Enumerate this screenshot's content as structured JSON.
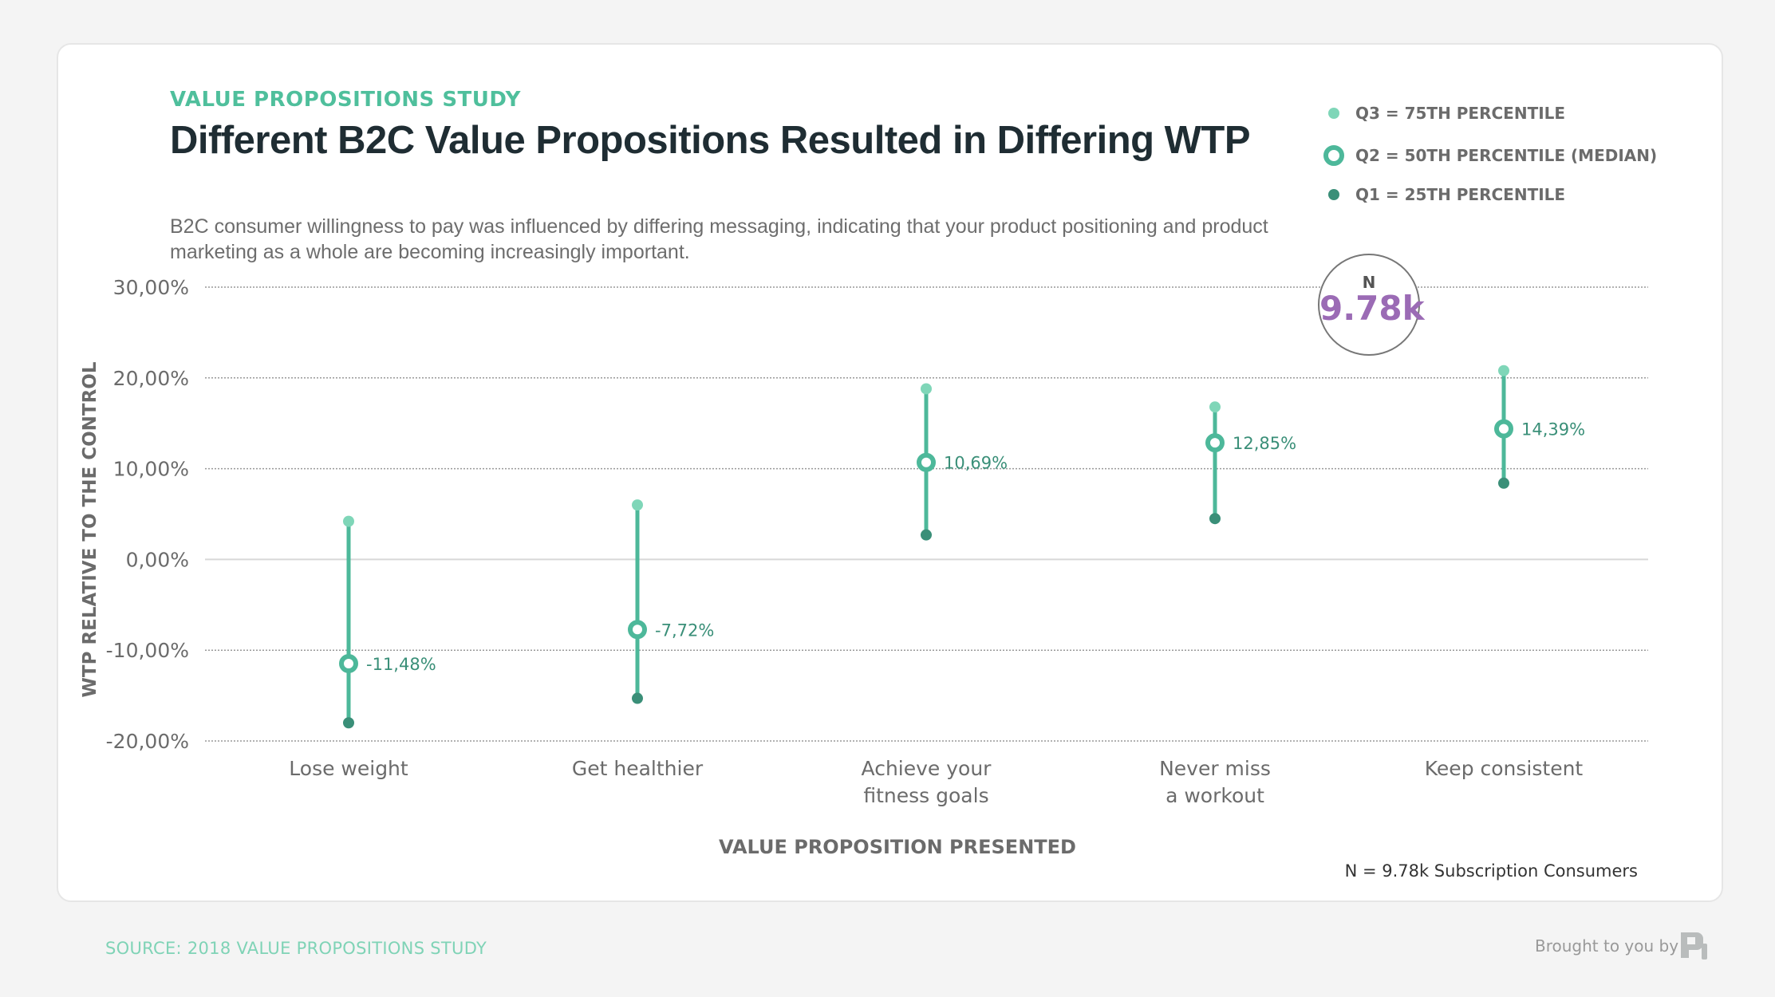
{
  "header": {
    "kicker": "VALUE PROPOSITIONS STUDY",
    "title": "Different B2C Value Propositions Resulted in Differing WTP",
    "subtitle": "B2C consumer willingness to pay was influenced by differing messaging, indicating that your product positioning and product marketing as a whole are becoming increasingly important."
  },
  "legend": [
    {
      "label": "Q3 = 75TH PERCENTILE",
      "color": "#7fd6b8"
    },
    {
      "label": "Q2 = 50TH PERCENTILE (MEDIAN)",
      "color": "#4db89a"
    },
    {
      "label": "Q1 = 25TH PERCENTILE",
      "color": "#3a8f78"
    }
  ],
  "badge": {
    "label": "N",
    "value": "9.78k",
    "color": "#9b6bb5"
  },
  "footnote": "N = 9.78k Subscription Consumers",
  "footer": {
    "source": "SOURCE: 2018 VALUE PROPOSITIONS STUDY",
    "brought": "Brought to you by"
  },
  "chart_data": {
    "type": "range-dot",
    "ylabel": "WTP RELATIVE TO THE CONTROL",
    "xlabel": "VALUE PROPOSITION PRESENTED",
    "ylim": [
      -20,
      30
    ],
    "yticks": [
      30,
      20,
      10,
      0,
      -10,
      -20
    ],
    "ytick_labels": [
      "30,00%",
      "20,00%",
      "10,00%",
      "0,00%",
      "-10,00%",
      "-20,00%"
    ],
    "grid": true,
    "legend_position": "top-right",
    "categories": [
      [
        "Lose weight"
      ],
      [
        "Get healthier"
      ],
      [
        "Achieve your",
        "fitness goals"
      ],
      [
        "Never miss",
        "a workout"
      ],
      [
        "Keep consistent"
      ]
    ],
    "series": [
      {
        "name": "Q3 = 75TH PERCENTILE",
        "values": [
          4.2,
          6.0,
          18.8,
          16.8,
          20.8
        ]
      },
      {
        "name": "Q2 = 50TH PERCENTILE (MEDIAN)",
        "values": [
          -11.48,
          -7.72,
          10.69,
          12.85,
          14.39
        ],
        "labels": [
          "-11,48%",
          "-7,72%",
          "10,69%",
          "12,85%",
          "14,39%"
        ]
      },
      {
        "name": "Q1 = 25TH PERCENTILE",
        "values": [
          -18.0,
          -15.3,
          2.7,
          4.5,
          8.4
        ]
      }
    ]
  }
}
